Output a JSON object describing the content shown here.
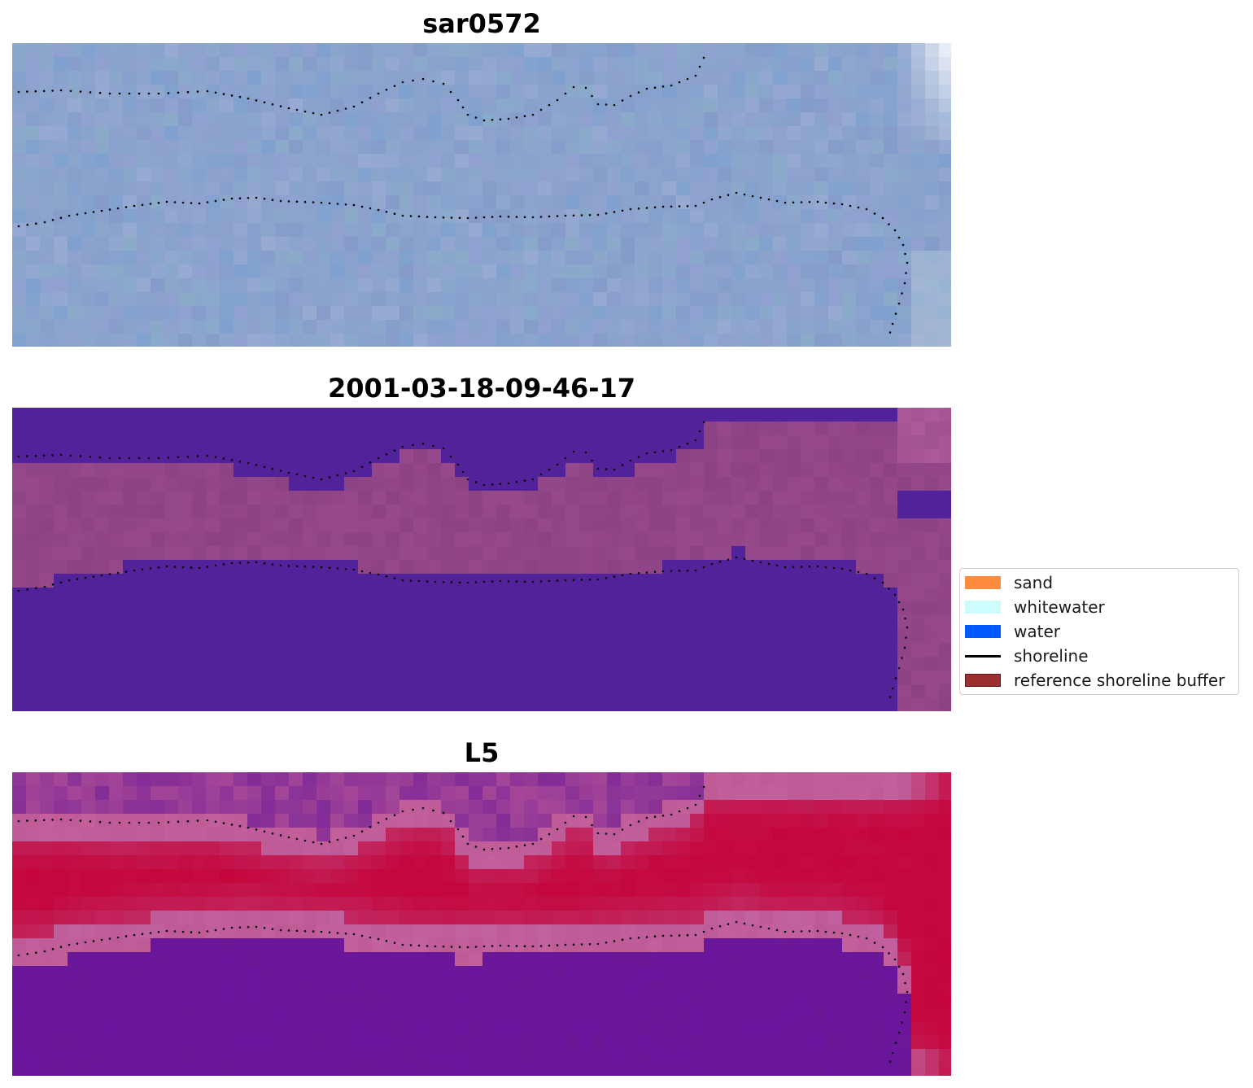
{
  "panels": [
    {
      "title": "sar0572",
      "image_type": "rgb-satellite-image"
    },
    {
      "title": "2001-03-18-09-46-17",
      "image_type": "classified-image"
    },
    {
      "title": "L5",
      "image_type": "mndwi-index-image"
    }
  ],
  "legend": {
    "items": [
      {
        "label": "sand",
        "kind": "patch",
        "color": "#ff8c3c",
        "edge": "#ff8c3c"
      },
      {
        "label": "whitewater",
        "kind": "patch",
        "color": "#ccfcfc",
        "edge": "#ccfcfc"
      },
      {
        "label": "water",
        "kind": "patch",
        "color": "#0059ff",
        "edge": "#0059ff"
      },
      {
        "label": "shoreline",
        "kind": "line",
        "color": "#000000"
      },
      {
        "label": "reference shoreline buffer",
        "kind": "patch",
        "color": "#9b2f2f",
        "edge": "#6b1515"
      }
    ]
  },
  "colors": {
    "rgb_base": "#8aa3cc",
    "class_water": "#52229a",
    "class_buffer": "#8c4284",
    "class_edge": "#b4609e",
    "index_low": "#6a1898",
    "index_high": "#c4063c"
  }
}
